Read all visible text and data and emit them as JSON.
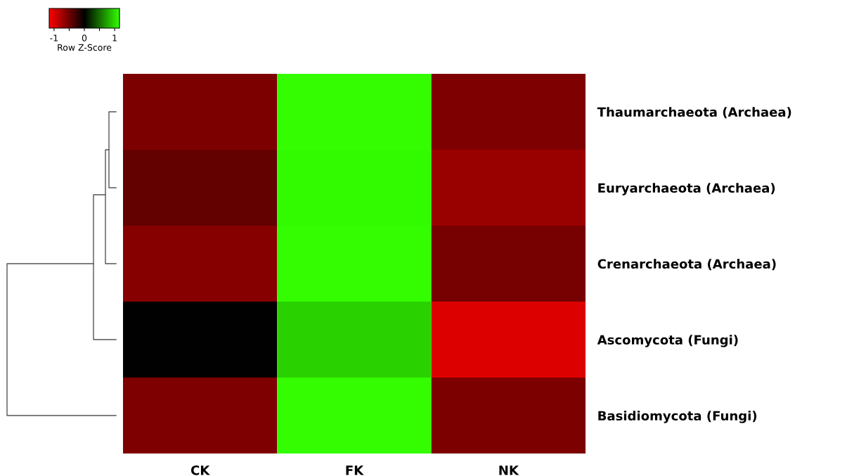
{
  "chart_data": {
    "type": "heatmap",
    "categories": [
      "CK",
      "FK",
      "NK"
    ],
    "y_categories": [
      "Thaumarchaeota (Archaea)",
      "Euryarchaeota (Archaea)",
      "Crenarchaeota (Archaea)",
      "Ascomycota (Fungi)",
      "Basidiomycota (Fungi)"
    ],
    "cells": [
      [
        -0.57,
        1.15,
        -0.58
      ],
      [
        -0.45,
        1.14,
        -0.69
      ],
      [
        -0.61,
        1.15,
        -0.54
      ],
      [
        0.0,
        0.95,
        -1.0
      ],
      [
        -0.58,
        1.15,
        -0.57
      ]
    ],
    "clabel": "Row Z-Score",
    "clim": [
      -1.16,
      1.16
    ],
    "cticks": [
      -1,
      {
        "value": -0.5,
        "label": null
      },
      0,
      {
        "value": 0.5,
        "label": null
      },
      1
    ]
  }
}
